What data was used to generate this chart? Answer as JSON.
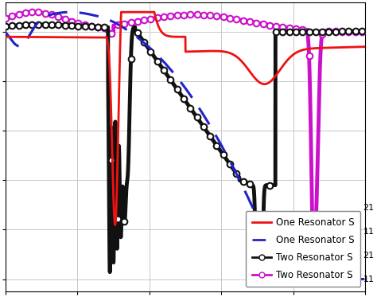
{
  "background_color": "#ffffff",
  "grid_color": "#c8c8c8",
  "xlim": [
    0,
    1
  ],
  "ylim": [
    -1.05,
    0.12
  ],
  "legend_labels": [
    "One Resonator S",
    "One Resonator S",
    "Two Resonator S",
    "Two Resonator S"
  ],
  "legend_subscripts": [
    "21",
    "11",
    "21",
    "11"
  ],
  "colors": {
    "red": "#ee1111",
    "blue": "#2222cc",
    "black": "#111111",
    "magenta": "#cc11cc"
  },
  "num_points": 3000,
  "marker_every": 55
}
